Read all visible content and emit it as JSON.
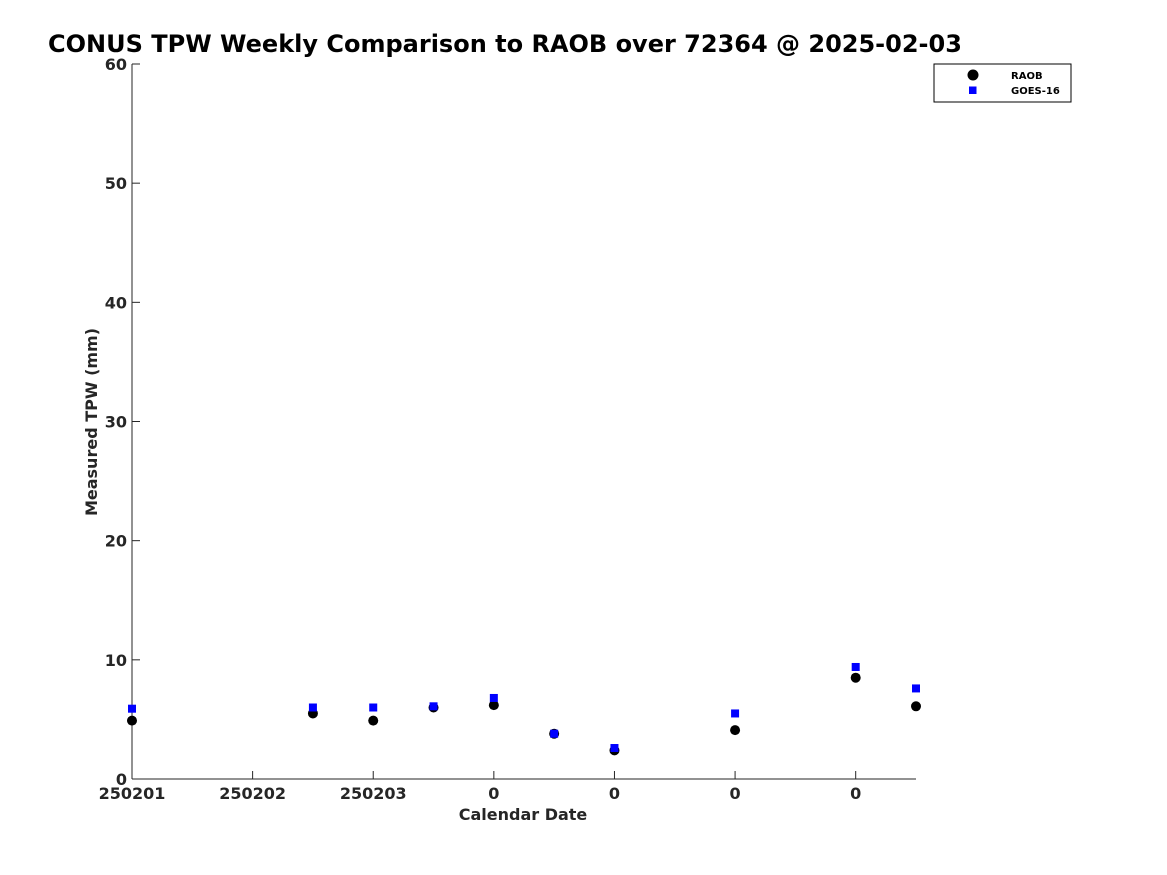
{
  "chart_data": {
    "type": "scatter",
    "title": "CONUS TPW Weekly Comparison to RAOB over 72364 @ 2025-02-03",
    "xlabel": "Calendar Date",
    "ylabel": "Measured TPW (mm)",
    "ylim": [
      0,
      60
    ],
    "yticks": [
      0,
      10,
      20,
      30,
      40,
      50,
      60
    ],
    "xlim": [
      0,
      6.5
    ],
    "xticks": [
      {
        "x": 0,
        "label": "250201"
      },
      {
        "x": 1,
        "label": "250202"
      },
      {
        "x": 2,
        "label": "250203"
      },
      {
        "x": 3,
        "label": "0"
      },
      {
        "x": 4,
        "label": "0"
      },
      {
        "x": 5,
        "label": "0"
      },
      {
        "x": 6,
        "label": "0"
      }
    ],
    "grid": false,
    "legend_position": "top-right",
    "series": [
      {
        "name": "RAOB",
        "marker": "circle",
        "color": "#000000",
        "points": [
          {
            "x": 0.0,
            "y": 4.9
          },
          {
            "x": 1.5,
            "y": 5.5
          },
          {
            "x": 2.0,
            "y": 4.9
          },
          {
            "x": 2.5,
            "y": 6.0
          },
          {
            "x": 3.0,
            "y": 6.2
          },
          {
            "x": 3.5,
            "y": 3.8
          },
          {
            "x": 4.0,
            "y": 2.4
          },
          {
            "x": 5.0,
            "y": 4.1
          },
          {
            "x": 6.0,
            "y": 8.5
          },
          {
            "x": 6.5,
            "y": 6.1
          }
        ]
      },
      {
        "name": "GOES-16",
        "marker": "square",
        "color": "#0000ff",
        "points": [
          {
            "x": 0.0,
            "y": 5.9
          },
          {
            "x": 1.5,
            "y": 6.0
          },
          {
            "x": 2.0,
            "y": 6.0
          },
          {
            "x": 2.5,
            "y": 6.1
          },
          {
            "x": 3.0,
            "y": 6.8
          },
          {
            "x": 3.5,
            "y": 3.8
          },
          {
            "x": 4.0,
            "y": 2.6
          },
          {
            "x": 5.0,
            "y": 5.5
          },
          {
            "x": 6.0,
            "y": 9.4
          },
          {
            "x": 6.5,
            "y": 7.6
          }
        ]
      }
    ]
  }
}
